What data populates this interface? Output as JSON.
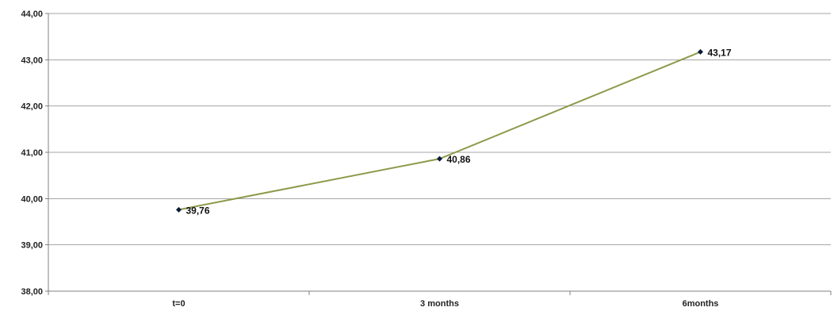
{
  "chart_data": {
    "type": "line",
    "title": "",
    "xlabel": "",
    "ylabel": "",
    "categories": [
      "t=0",
      "3 months",
      "6months"
    ],
    "ylim": [
      38,
      44
    ],
    "ytick_values": [
      38,
      39,
      40,
      41,
      42,
      43,
      44
    ],
    "ytick_labels": [
      "38,00",
      "39,00",
      "40,00",
      "41,00",
      "42,00",
      "43,00",
      "44,00"
    ],
    "grid": true,
    "legend": "none",
    "series": [
      {
        "values": [
          39.76,
          40.86,
          43.17
        ],
        "labels": [
          "39,76",
          "40,86",
          "43,17"
        ],
        "line_color": "#8c9a4a",
        "marker_color": "#0a1a3a"
      }
    ]
  }
}
